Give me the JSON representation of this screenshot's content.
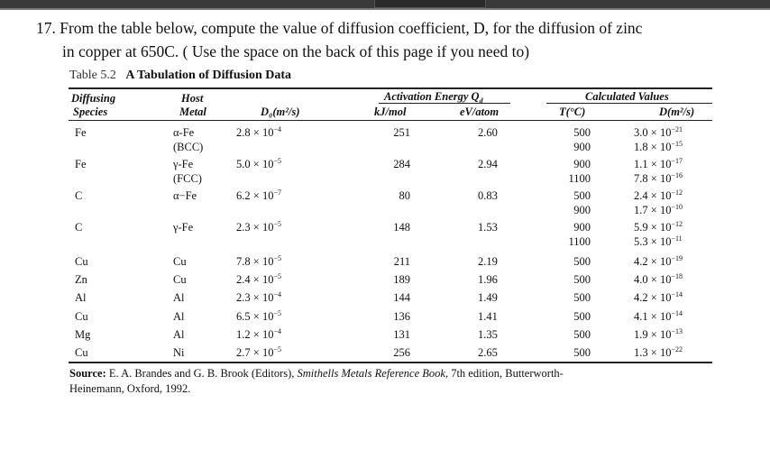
{
  "question": {
    "line1": "17. From the table below, compute the value of diffusion coefficient, D, for the diffusion of zinc",
    "line2": "in copper at 650C.  ( Use the space on the back of this page if you need to)"
  },
  "table": {
    "label": "Table 5.2",
    "title": "A Tabulation of Diffusion Data",
    "headers": {
      "species_1": "Diffusing",
      "species_2": "Species",
      "host_1": "Host",
      "host_2": "Metal",
      "d0": "D₀(m²/s)",
      "activation_group": "Activation Energy Q",
      "activation_sub": "d",
      "kj": "kJ/mol",
      "ev": "eV/atom",
      "calc_group": "Calculated Values",
      "t": "T(°C)",
      "d": "D(m²/s)"
    },
    "rows": [
      {
        "species": "Fe",
        "host": "α-Fe",
        "host2": "(BCC)",
        "d0_m": "2.8",
        "d0_e": "−4",
        "kj": "251",
        "ev": "2.60",
        "t": [
          "500",
          "900"
        ],
        "d_m": [
          "3.0",
          "1.8"
        ],
        "d_e": [
          "−21",
          "−15"
        ]
      },
      {
        "species": "Fe",
        "host": "γ-Fe",
        "host2": "(FCC)",
        "d0_m": "5.0",
        "d0_e": "−5",
        "kj": "284",
        "ev": "2.94",
        "t": [
          "900",
          "1100"
        ],
        "d_m": [
          "1.1",
          "7.8"
        ],
        "d_e": [
          "−17",
          "−16"
        ]
      },
      {
        "species": "C",
        "host": "α−Fe",
        "host2": "",
        "d0_m": "6.2",
        "d0_e": "−7",
        "kj": "80",
        "ev": "0.83",
        "t": [
          "500",
          "900"
        ],
        "d_m": [
          "2.4",
          "1.7"
        ],
        "d_e": [
          "−12",
          "−10"
        ]
      },
      {
        "species": "C",
        "host": "γ-Fe",
        "host2": "",
        "d0_m": "2.3",
        "d0_e": "−5",
        "kj": "148",
        "ev": "1.53",
        "t": [
          "900",
          "1100"
        ],
        "d_m": [
          "5.9",
          "5.3"
        ],
        "d_e": [
          "−12",
          "−11"
        ]
      },
      {
        "species": "Cu",
        "host": "Cu",
        "host2": "",
        "d0_m": "7.8",
        "d0_e": "−5",
        "kj": "211",
        "ev": "2.19",
        "t": [
          "500"
        ],
        "d_m": [
          "4.2"
        ],
        "d_e": [
          "−19"
        ]
      },
      {
        "species": "Zn",
        "host": "Cu",
        "host2": "",
        "d0_m": "2.4",
        "d0_e": "−5",
        "kj": "189",
        "ev": "1.96",
        "t": [
          "500"
        ],
        "d_m": [
          "4.0"
        ],
        "d_e": [
          "−18"
        ]
      },
      {
        "species": "Al",
        "host": "Al",
        "host2": "",
        "d0_m": "2.3",
        "d0_e": "−4",
        "kj": "144",
        "ev": "1.49",
        "t": [
          "500"
        ],
        "d_m": [
          "4.2"
        ],
        "d_e": [
          "−14"
        ]
      },
      {
        "species": "Cu",
        "host": "Al",
        "host2": "",
        "d0_m": "6.5",
        "d0_e": "−5",
        "kj": "136",
        "ev": "1.41",
        "t": [
          "500"
        ],
        "d_m": [
          "4.1"
        ],
        "d_e": [
          "−14"
        ]
      },
      {
        "species": "Mg",
        "host": "Al",
        "host2": "",
        "d0_m": "1.2",
        "d0_e": "−4",
        "kj": "131",
        "ev": "1.35",
        "t": [
          "500"
        ],
        "d_m": [
          "1.9"
        ],
        "d_e": [
          "−13"
        ]
      },
      {
        "species": "Cu",
        "host": "Ni",
        "host2": "",
        "d0_m": "2.7",
        "d0_e": "−5",
        "kj": "256",
        "ev": "2.65",
        "t": [
          "500"
        ],
        "d_m": [
          "1.3"
        ],
        "d_e": [
          "−22"
        ]
      }
    ],
    "times": "×",
    "ten": "10",
    "source": {
      "label": "Source:",
      "text1": "E. A. Brandes and G. B. Brook (Editors),",
      "book": "Smithells Metals Reference Book,",
      "text2": "7th edition, Butterworth-",
      "line2": "Heinemann, Oxford, 1992."
    }
  }
}
